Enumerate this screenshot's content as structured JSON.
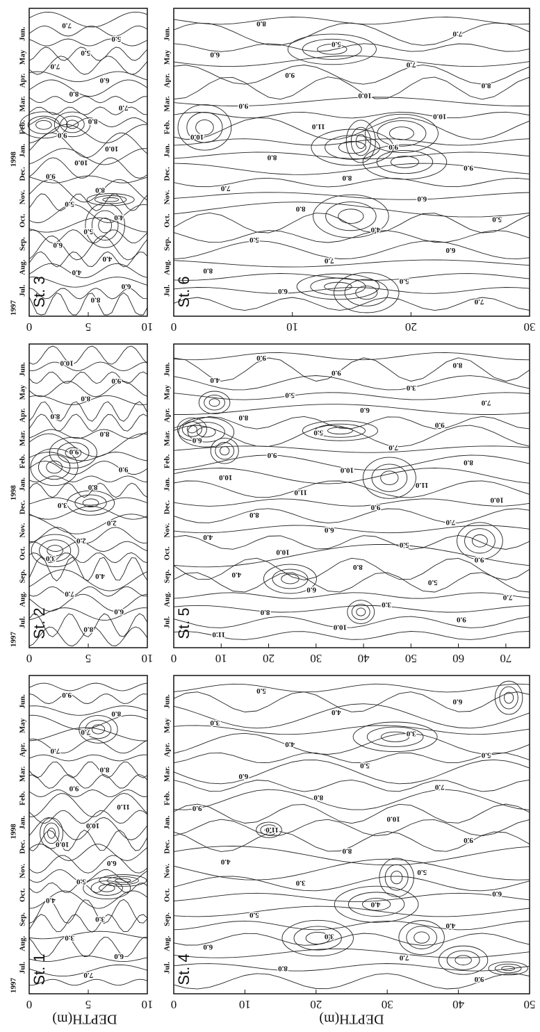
{
  "chart_data": [
    {
      "type": "contour",
      "station": "St. 3",
      "years": [
        "1997",
        "1998"
      ],
      "months": [
        "Jul.",
        "Aug.",
        "Sep.",
        "Oct.",
        "Nov.",
        "Dec.",
        "Jan.",
        "Feb.",
        "Mar.",
        "Apr.",
        "May",
        "Jun."
      ],
      "xlim": [
        0,
        10
      ],
      "xticks": [
        0,
        5,
        10
      ],
      "contour_labels": [
        "7.0",
        "5.0",
        "5.0",
        "7.0",
        "6.0",
        "8.0",
        "7.0",
        "8.0",
        "9.0",
        "10.0",
        "10.0",
        "9.0",
        "8.0",
        "5.0",
        "4.0",
        "5.0",
        "6.0",
        "4.0",
        "4.0",
        "6.0",
        "8.0"
      ]
    },
    {
      "type": "contour",
      "station": "St. 6",
      "months": [
        "Jul.",
        "Aug.",
        "Sep.",
        "Oct.",
        "Nov.",
        "Dec.",
        "Jan.",
        "Feb.",
        "Mar.",
        "Apr.",
        "May",
        "Jun."
      ],
      "xlim": [
        0,
        30
      ],
      "xticks": [
        0,
        10,
        20,
        30
      ],
      "contour_labels": [
        "8.0",
        "7.0",
        "5.0",
        "6.0",
        "7.0",
        "9.0",
        "8.0",
        "10.0",
        "9.0",
        "10.0",
        "11.0",
        "10.0",
        "9.0",
        "8.0",
        "9.0",
        "8.0",
        "7.0",
        "6.0",
        "8.0",
        "5.0",
        "4.0",
        "5.0",
        "6.0",
        "7.0",
        "8.0",
        "5.0",
        "6.0",
        "7.0"
      ]
    },
    {
      "type": "contour",
      "station": "St. 2",
      "years": [
        "1997",
        "1998"
      ],
      "months": [
        "Jul.",
        "Aug.",
        "Sep.",
        "Oct.",
        "Nov.",
        "Dec.",
        "Jan.",
        "Feb.",
        "Mar.",
        "Apr.",
        "May",
        "Jun."
      ],
      "xlim": [
        0,
        10
      ],
      "xticks": [
        0,
        5,
        10
      ],
      "contour_labels": [
        "10.0",
        "9.0",
        "8.0",
        "8.0",
        "8.0",
        "9.0",
        "9.0",
        "8.0",
        "3.0",
        "2.0",
        "2.0",
        "3.0",
        "4.0",
        "7.0",
        "6.0",
        "8.0"
      ]
    },
    {
      "type": "contour",
      "station": "St. 5",
      "months": [
        "Jul.",
        "Aug.",
        "Sep.",
        "Oct.",
        "Nov.",
        "Dec.",
        "Jan.",
        "Feb.",
        "Mar.",
        "Apr.",
        "May",
        "Jun."
      ],
      "xlim": [
        0,
        75
      ],
      "xticks": [
        0,
        10,
        20,
        30,
        40,
        50,
        60,
        70
      ],
      "contour_labels": [
        "9.0",
        "8.0",
        "9.0",
        "4.0",
        "3.0",
        "5.0",
        "7.0",
        "6.0",
        "8.0",
        "9.0",
        "5.0",
        "6.0",
        "7.0",
        "9.0",
        "8.0",
        "10.0",
        "10.0",
        "11.0",
        "11.0",
        "10.0",
        "9.0",
        "8.0",
        "7.0",
        "6.0",
        "4.0",
        "5.0",
        "10.0",
        "9.0",
        "8.0",
        "4.0",
        "5.0",
        "6.0",
        "7.0",
        "3.0",
        "8.0",
        "9.0",
        "10.0",
        "11.0"
      ]
    },
    {
      "type": "contour",
      "station": "St. 1",
      "years": [
        "1997",
        "1998"
      ],
      "months": [
        "Jul.",
        "Aug.",
        "Sep.",
        "Oct.",
        "Nov.",
        "Dec.",
        "Jan.",
        "Feb.",
        "Mar.",
        "Apr.",
        "May",
        "Jun."
      ],
      "xlim": [
        0,
        10
      ],
      "xticks": [
        0,
        5,
        10
      ],
      "x_label": "DEPTH(m)",
      "contour_labels": [
        "9.0",
        "8.0",
        "7.0",
        "7.0",
        "8.0",
        "9.0",
        "11.0",
        "10.0",
        "10.0",
        "6.0",
        "5.0",
        "4.0",
        "3.0",
        "3.0",
        "6.0",
        "7.0"
      ]
    },
    {
      "type": "contour",
      "station": "St. 4",
      "months": [
        "Jul.",
        "Aug.",
        "Sep.",
        "Oct.",
        "Nov.",
        "Dec.",
        "Jan.",
        "Feb.",
        "Mar.",
        "Apr.",
        "May",
        "Jun."
      ],
      "xlim": [
        0,
        50
      ],
      "xticks": [
        0,
        10,
        20,
        30,
        40,
        50
      ],
      "x_label": "DEPTH(m)",
      "contour_labels": [
        "5.0",
        "6.0",
        "4.0",
        "3.0",
        "3.0",
        "4.0",
        "5.0",
        "5.0",
        "6.0",
        "7.0",
        "8.0",
        "9.0",
        "10.0",
        "11.0",
        "9.0",
        "8.0",
        "4.0",
        "5.0",
        "3.0",
        "6.0",
        "4.0",
        "5.0",
        "4.0",
        "3.0",
        "6.0",
        "7.0",
        "8.0",
        "9.0"
      ]
    }
  ]
}
